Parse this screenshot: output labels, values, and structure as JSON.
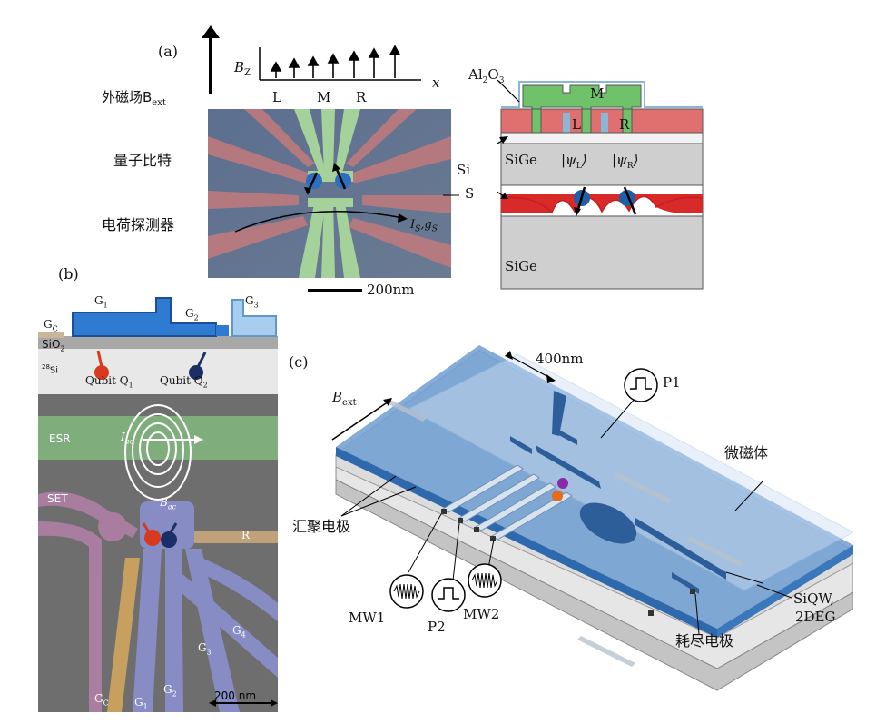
{
  "panel_a": {
    "label": "(a)",
    "bext_label": "外磁场B",
    "bext_sub": "ext",
    "bz_label": "B",
    "bz_sub": "Z",
    "x_label": "x",
    "lmr": [
      "L",
      "M",
      "R"
    ],
    "qubit_label": "量子比特",
    "detector_label": "电荷探测器",
    "s_label": "S",
    "ls_label": "I",
    "ls_sub": "S",
    "gs_label": ",g",
    "gs_sub": "S",
    "scale": "200nm",
    "cross": {
      "al2o3": "Al",
      "al_sub": "2",
      "o": "O",
      "o_sub": "3",
      "m": "M",
      "l": "L",
      "r": "R",
      "si": "Si",
      "sige_top": "SiGe",
      "sige_bottom": "SiGe",
      "psi_l": "|ψ",
      "psi_l_sub": "L",
      "psi_r": "|ψ",
      "psi_r_sub": "R",
      "ket": "⟩"
    }
  },
  "panel_b": {
    "label": "(b)",
    "g1": "G",
    "g1_sub": "1",
    "g2": "G",
    "g2_sub": "2",
    "g3": "G",
    "g3_sub": "3",
    "gc": "G",
    "gc_sub": "C",
    "sio2": "SiO",
    "sio2_sub": "2",
    "si28_sup": "28",
    "si28": "Si",
    "q1": "Qubit Q",
    "q1_sub": "1",
    "q2": "Qubit Q",
    "q2_sub": "2",
    "esr": "ESR",
    "iac": "I",
    "iac_sub": "ac",
    "bac": "B",
    "bac_sub": "ac",
    "set": "SET",
    "r": "R",
    "g4": "G",
    "g4_sub": "4",
    "scale": "200 nm"
  },
  "panel_c": {
    "label": "(c)",
    "scale": "400nm",
    "bext": "B",
    "bext_sub": "ext",
    "p1": "P1",
    "micromagnet": "微磁体",
    "gate_label": "汇聚电极",
    "mw1": "MW1",
    "p2": "P2",
    "mw2": "MW2",
    "siqw": "SiQW,",
    "twodeg": "2DEG",
    "depletion": "耗尽电极"
  },
  "colors": {
    "red_gate": "#d96b6b",
    "green_gate": "#7cc46b",
    "blue_dot": "#1e5fa8",
    "blue_film": "#5b8fc8",
    "dark_red": "#c81e1e"
  }
}
